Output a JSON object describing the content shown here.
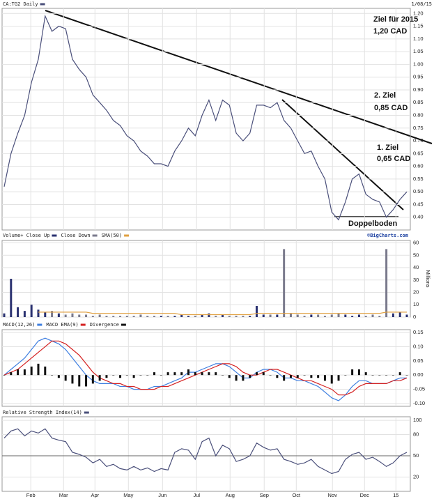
{
  "header": {
    "date": "1/08/15",
    "credit": "©BigCharts.com",
    "volume_unit": "Millions"
  },
  "chart_data": [
    {
      "type": "line",
      "xlim": [
        0,
        59
      ],
      "xticks": [
        {
          "value": 3.9,
          "label": "Feb"
        },
        {
          "value": 8.7,
          "label": "Mar"
        },
        {
          "value": 13.3,
          "label": "Apr"
        },
        {
          "value": 18.2,
          "label": "May"
        },
        {
          "value": 23.2,
          "label": "Jun"
        },
        {
          "value": 28.2,
          "label": "Jul"
        },
        {
          "value": 33.1,
          "label": "Aug"
        },
        {
          "value": 38.1,
          "label": "Sep"
        },
        {
          "value": 42.8,
          "label": "Oct"
        },
        {
          "value": 48.1,
          "label": "Nov"
        },
        {
          "value": 52.8,
          "label": "Dec"
        },
        {
          "value": 57.4,
          "label": "15"
        }
      ],
      "ylim": [
        0.35,
        1.22
      ],
      "yticks": [
        {
          "value": 0.4,
          "label": "0.40"
        },
        {
          "value": 0.45,
          "label": "0.45"
        },
        {
          "value": 0.5,
          "label": "0.50"
        },
        {
          "value": 0.55,
          "label": "0.55"
        },
        {
          "value": 0.6,
          "label": "0.60"
        },
        {
          "value": 0.65,
          "label": "0.65"
        },
        {
          "value": 0.7,
          "label": "0.70"
        },
        {
          "value": 0.75,
          "label": "0.75"
        },
        {
          "value": 0.8,
          "label": "0.80"
        },
        {
          "value": 0.85,
          "label": "0.85"
        },
        {
          "value": 0.9,
          "label": "0.90"
        },
        {
          "value": 0.95,
          "label": "0.95"
        },
        {
          "value": 1.0,
          "label": "1.00"
        },
        {
          "value": 1.05,
          "label": "1.05"
        },
        {
          "value": 1.1,
          "label": "1.10"
        },
        {
          "value": 1.15,
          "label": "1.15"
        },
        {
          "value": 1.2,
          "label": "1.20"
        }
      ],
      "grid": true,
      "series": [
        {
          "name": "CA:TG2 Daily",
          "color": "#4a4f7a",
          "values": [
            0.52,
            0.65,
            0.73,
            0.8,
            0.93,
            1.02,
            1.19,
            1.13,
            1.15,
            1.14,
            1.02,
            0.98,
            0.95,
            0.88,
            0.85,
            0.82,
            0.78,
            0.76,
            0.72,
            0.7,
            0.66,
            0.64,
            0.61,
            0.61,
            0.6,
            0.66,
            0.7,
            0.75,
            0.72,
            0.8,
            0.86,
            0.78,
            0.86,
            0.84,
            0.73,
            0.7,
            0.73,
            0.84,
            0.84,
            0.83,
            0.85,
            0.78,
            0.75,
            0.7,
            0.65,
            0.66,
            0.6,
            0.55,
            0.42,
            0.39,
            0.46,
            0.55,
            0.57,
            0.49,
            0.47,
            0.46,
            0.4,
            0.43,
            0.47,
            0.5
          ]
        }
      ],
      "annotations": [
        "Ziel für 2015",
        "1,20 CAD",
        "2. Ziel",
        "0,85 CAD",
        "1. Ziel",
        "0,65 CAD",
        "Doppelboden"
      ]
    },
    {
      "type": "bar",
      "ylim": [
        0,
        62
      ],
      "yticks": [
        0,
        10,
        20,
        30,
        40,
        50,
        60
      ],
      "grid": true,
      "series": [
        {
          "name": "Volume+ Close Up",
          "color": "#2a3170",
          "values": [
            3,
            31,
            8,
            5,
            10,
            6,
            4,
            null,
            3,
            null,
            null,
            null,
            null,
            null,
            null,
            null,
            null,
            null,
            null,
            null,
            null,
            null,
            null,
            1,
            null,
            1,
            2,
            1,
            null,
            2,
            3,
            null,
            2,
            null,
            null,
            null,
            1,
            9,
            2,
            null,
            2,
            null,
            null,
            null,
            null,
            2,
            null,
            null,
            null,
            null,
            2,
            1,
            2,
            null,
            null,
            null,
            null,
            3,
            4,
            2
          ]
        },
        {
          "name": "Close Down",
          "color": "#7a7a8c",
          "values": [
            null,
            null,
            null,
            null,
            null,
            null,
            null,
            5,
            null,
            2,
            3,
            2,
            2,
            1,
            2,
            1,
            1,
            1,
            1,
            1,
            2,
            1,
            1,
            null,
            1,
            null,
            null,
            null,
            1,
            null,
            null,
            1,
            null,
            1,
            1,
            1,
            null,
            null,
            null,
            2,
            null,
            55,
            3,
            2,
            1,
            null,
            2,
            1,
            2,
            3,
            null,
            null,
            null,
            1,
            2,
            1,
            55,
            null,
            null,
            null
          ]
        },
        {
          "name": "SMA(50)",
          "color": "#e0a040",
          "type": "line",
          "values": [
            null,
            null,
            null,
            null,
            null,
            4,
            4,
            4,
            4,
            4,
            4,
            4,
            4,
            3,
            3,
            3,
            3,
            3,
            3,
            3,
            3,
            3,
            3,
            3,
            3,
            3,
            2,
            2,
            2,
            2,
            2,
            2,
            2,
            2,
            2,
            2,
            2,
            3,
            3,
            3,
            3,
            3,
            3,
            3,
            3,
            3,
            3,
            3,
            3,
            3,
            3,
            3,
            3,
            3,
            3,
            3,
            4,
            4,
            4,
            4
          ]
        }
      ]
    },
    {
      "type": "line",
      "ylim": [
        -0.11,
        0.16
      ],
      "yticks": [
        {
          "value": -0.1,
          "label": "-0.10"
        },
        {
          "value": -0.05,
          "label": "-0.05"
        },
        {
          "value": 0,
          "label": "0.00"
        },
        {
          "value": 0.05,
          "label": "0.05"
        },
        {
          "value": 0.1,
          "label": "0.10"
        },
        {
          "value": 0.15,
          "label": "0.15"
        }
      ],
      "grid": true,
      "series": [
        {
          "name": "MACD(12,26)",
          "color": "#3d7ee0",
          "values": [
            0.0,
            0.02,
            0.04,
            0.06,
            0.09,
            0.12,
            0.13,
            0.12,
            0.11,
            0.09,
            0.06,
            0.03,
            0.0,
            -0.02,
            -0.03,
            -0.03,
            -0.03,
            -0.04,
            -0.04,
            -0.05,
            -0.05,
            -0.05,
            -0.04,
            -0.04,
            -0.03,
            -0.02,
            -0.01,
            0.01,
            0.01,
            0.02,
            0.03,
            0.04,
            0.04,
            0.03,
            0.01,
            -0.01,
            -0.01,
            0.01,
            0.02,
            0.02,
            0.01,
            -0.01,
            -0.01,
            -0.02,
            -0.02,
            -0.03,
            -0.04,
            -0.06,
            -0.08,
            -0.09,
            -0.07,
            -0.04,
            -0.02,
            -0.02,
            -0.03,
            -0.03,
            -0.03,
            -0.02,
            -0.01,
            -0.01
          ]
        },
        {
          "name": "MACD EMA(9)",
          "color": "#d42020",
          "values": [
            0.0,
            0.01,
            0.02,
            0.04,
            0.06,
            0.08,
            0.1,
            0.12,
            0.12,
            0.11,
            0.09,
            0.07,
            0.04,
            0.01,
            -0.01,
            -0.02,
            -0.03,
            -0.03,
            -0.04,
            -0.04,
            -0.05,
            -0.05,
            -0.05,
            -0.04,
            -0.04,
            -0.03,
            -0.02,
            -0.01,
            0.0,
            0.01,
            0.02,
            0.03,
            0.04,
            0.04,
            0.03,
            0.01,
            0.0,
            0.0,
            0.01,
            0.02,
            0.02,
            0.01,
            0.0,
            -0.01,
            -0.02,
            -0.02,
            -0.03,
            -0.04,
            -0.05,
            -0.07,
            -0.07,
            -0.06,
            -0.04,
            -0.03,
            -0.03,
            -0.03,
            -0.03,
            -0.02,
            -0.02,
            -0.01
          ]
        },
        {
          "name": "Divergence",
          "color": "#111111",
          "type": "bar",
          "values": [
            0,
            0.01,
            0.02,
            0.02,
            0.03,
            0.04,
            0.03,
            0,
            -0.01,
            -0.02,
            -0.03,
            -0.04,
            -0.04,
            -0.03,
            -0.02,
            -0.01,
            0,
            -0.01,
            0,
            -0.01,
            0,
            0,
            0.01,
            0,
            0.01,
            0.01,
            0.01,
            0.02,
            0.01,
            0.01,
            0.01,
            0.01,
            0,
            -0.01,
            -0.02,
            -0.02,
            -0.01,
            0.01,
            0.01,
            0,
            -0.01,
            -0.02,
            -0.01,
            -0.01,
            0,
            -0.01,
            -0.01,
            -0.02,
            -0.03,
            -0.02,
            0,
            0.02,
            0.02,
            0.01,
            0,
            0,
            0,
            0,
            0.01,
            0
          ]
        }
      ]
    },
    {
      "type": "line",
      "ylim": [
        0,
        105
      ],
      "yticks": [
        20,
        50,
        80,
        100
      ],
      "grid": true,
      "series": [
        {
          "name": "Relative Strength Index(14)",
          "color": "#4a4f7a",
          "values": [
            75,
            85,
            88,
            78,
            85,
            82,
            88,
            75,
            72,
            70,
            55,
            52,
            48,
            40,
            45,
            35,
            38,
            32,
            30,
            35,
            30,
            33,
            28,
            32,
            30,
            55,
            60,
            58,
            45,
            70,
            75,
            50,
            65,
            60,
            42,
            45,
            50,
            68,
            62,
            58,
            60,
            45,
            42,
            38,
            40,
            45,
            35,
            30,
            25,
            28,
            45,
            52,
            55,
            45,
            48,
            42,
            35,
            40,
            50,
            55
          ]
        }
      ]
    }
  ]
}
